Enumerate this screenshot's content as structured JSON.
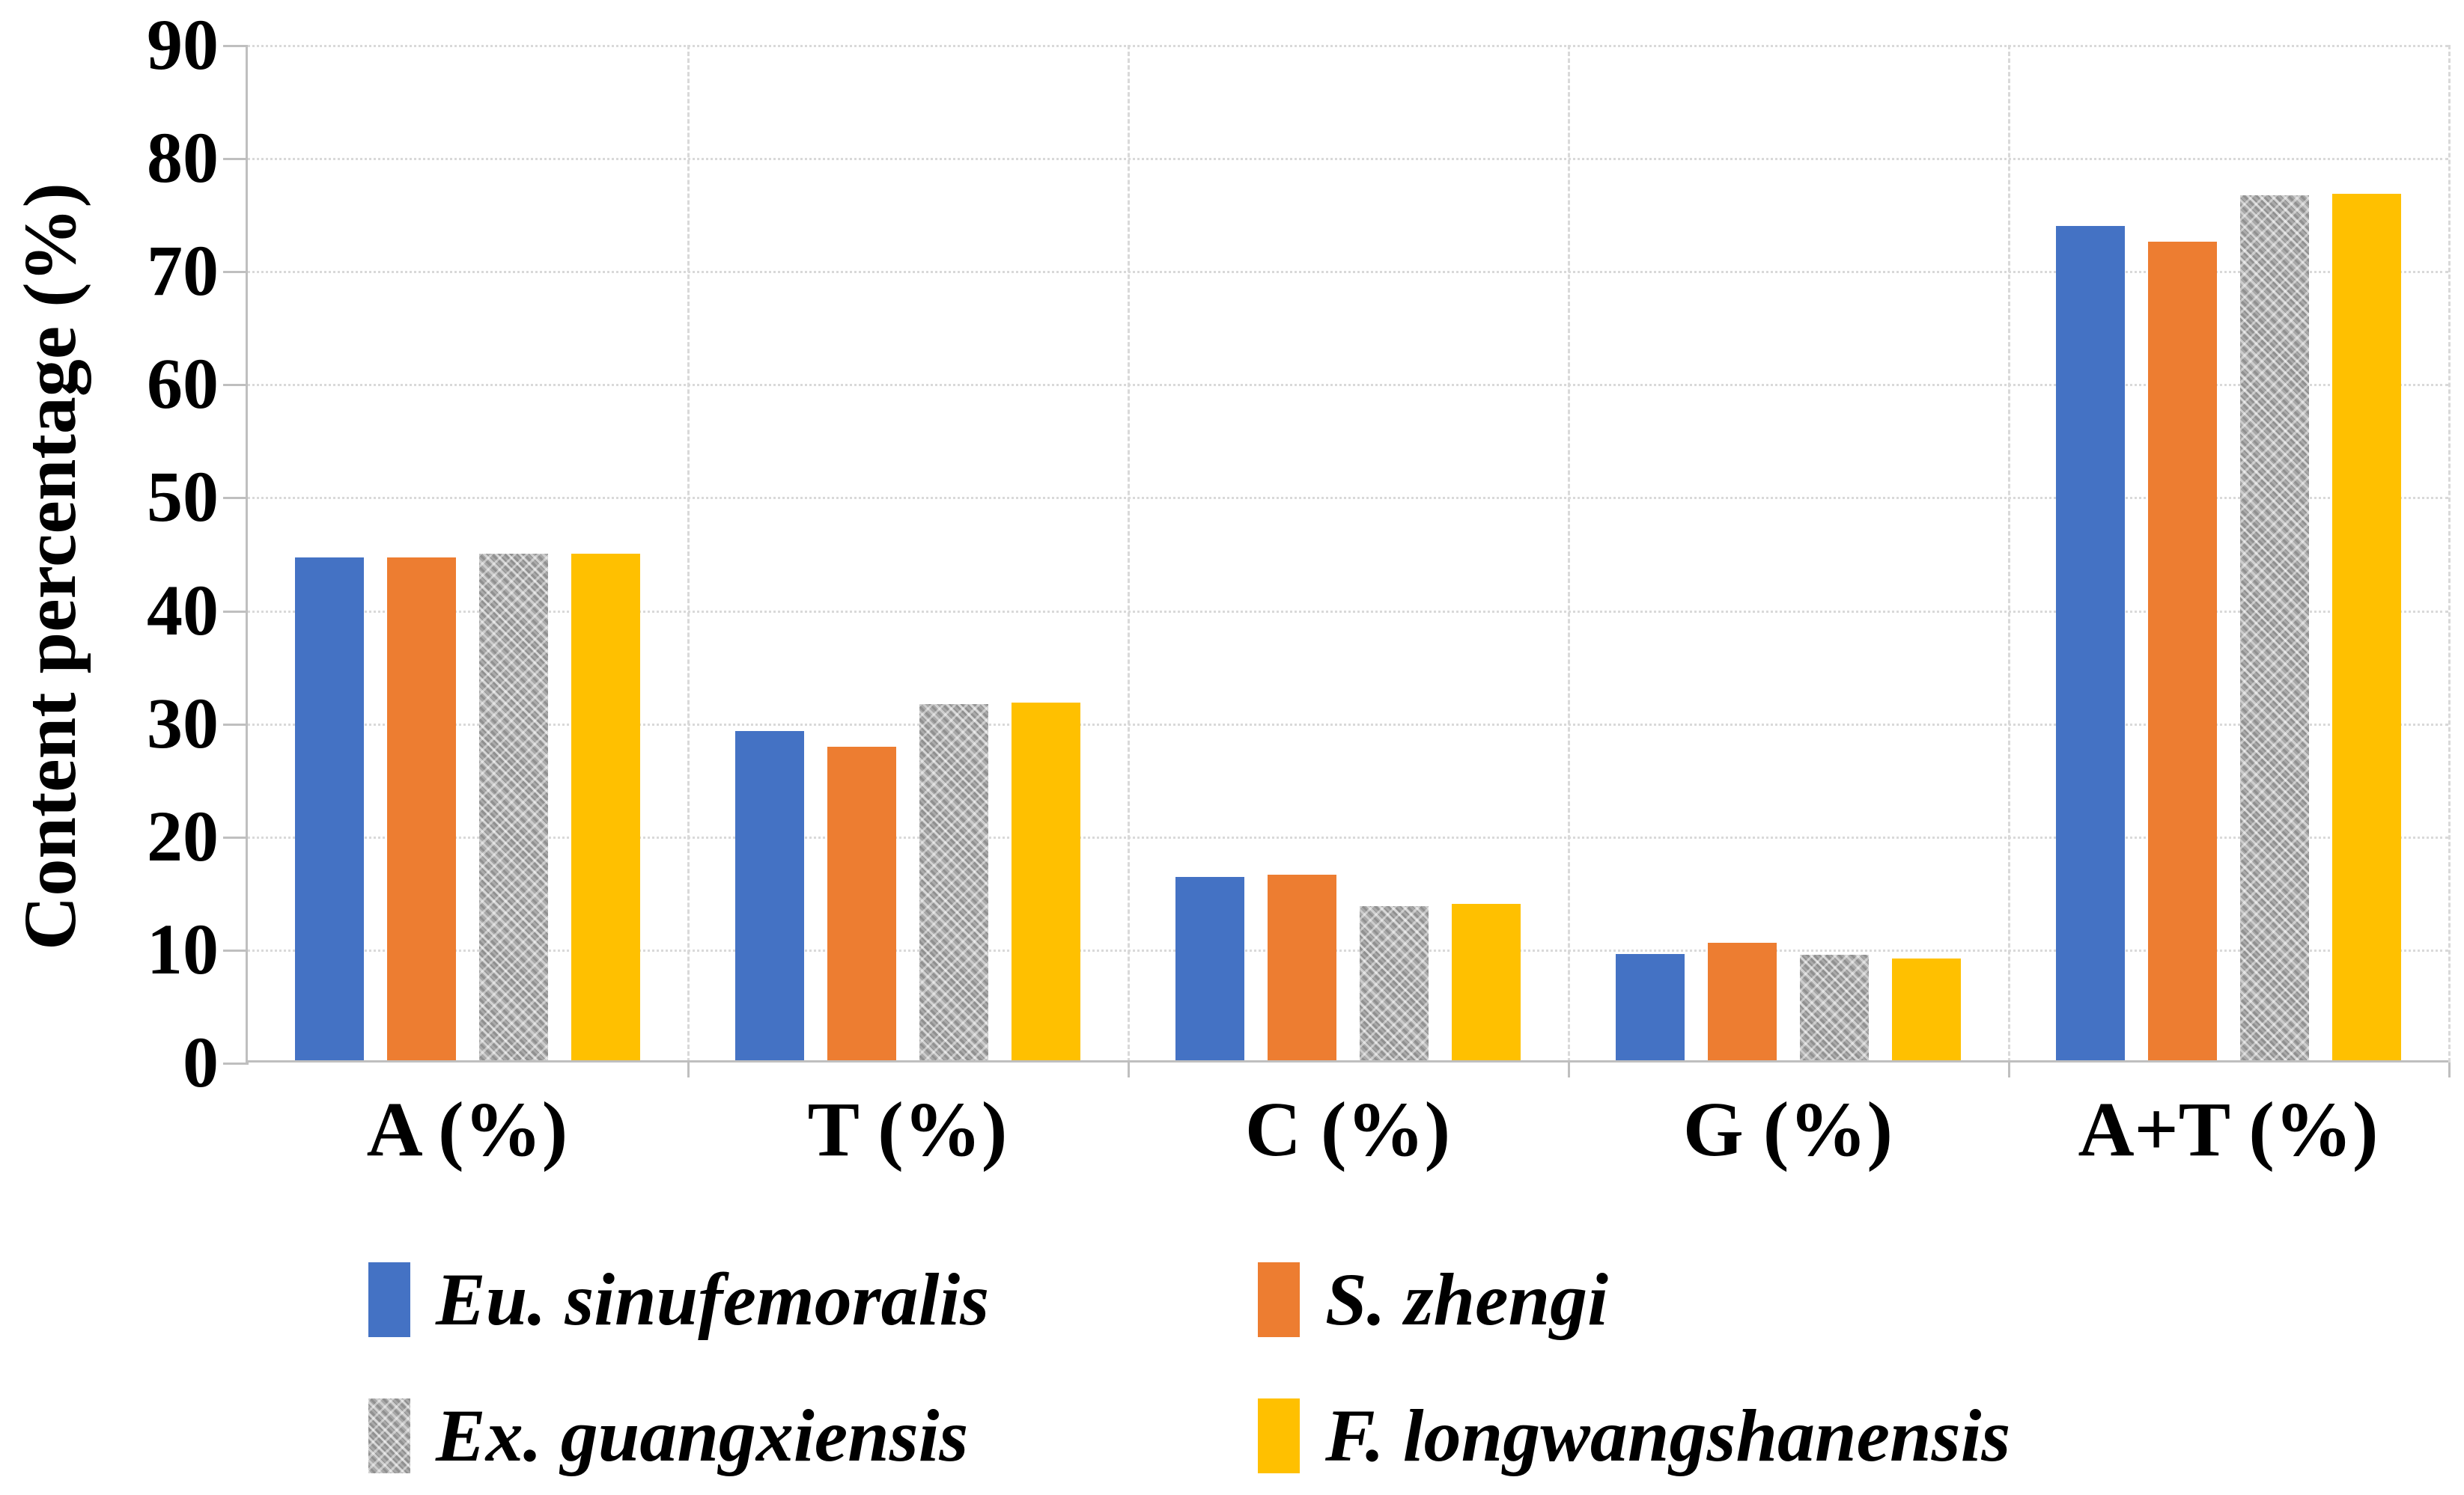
{
  "chart_data": {
    "type": "bar",
    "title": "",
    "xlabel": "",
    "ylabel": "Content percentage (%)",
    "ylim": [
      0,
      90
    ],
    "ytick_step": 10,
    "yticks": [
      0,
      10,
      20,
      30,
      40,
      50,
      60,
      70,
      80,
      90
    ],
    "categories": [
      "A (%)",
      "T (%)",
      "C (%)",
      "G (%)",
      "A+T (%)"
    ],
    "series": [
      {
        "name": "Eu. sinufemoralis",
        "color": "#4472C4",
        "pattern": "solid",
        "values": [
          44.7,
          29.3,
          16.4,
          9.6,
          74.0
        ]
      },
      {
        "name": "S. zhengi",
        "color": "#ED7D31",
        "pattern": "solid",
        "values": [
          44.7,
          27.9,
          16.6,
          10.6,
          72.6
        ]
      },
      {
        "name": "Ex. guangxiensis",
        "color": "#A5A5A5",
        "pattern": "zigzag",
        "values": [
          45.0,
          31.7,
          13.8,
          9.5,
          76.7
        ]
      },
      {
        "name": "F. longwangshanensis",
        "color": "#FFC000",
        "pattern": "solid",
        "values": [
          45.0,
          31.8,
          14.0,
          9.2,
          76.8
        ]
      }
    ],
    "grid": true,
    "gridline_color": "#D9D9D9",
    "axis_color": "#BFBFBF",
    "legend_position": "bottom"
  }
}
